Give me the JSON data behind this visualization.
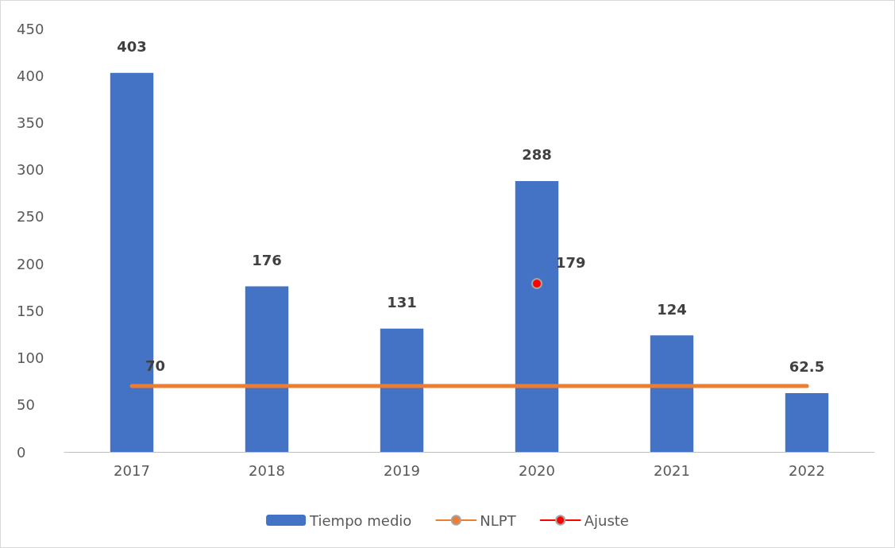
{
  "chart_data": {
    "type": "bar",
    "categories": [
      "2017",
      "2018",
      "2019",
      "2020",
      "2021",
      "2022"
    ],
    "series": [
      {
        "name": "Tiempo medio",
        "color": "#4472c4",
        "values": [
          403,
          176,
          131,
          288,
          124,
          62.5
        ],
        "value_labels": [
          "403",
          "176",
          "131",
          "288",
          "124",
          "62.5"
        ]
      },
      {
        "name": "NLPT",
        "type": "line",
        "color": "#ed7d31",
        "marker": "none",
        "line_style": "solid",
        "values": [
          70,
          70,
          70,
          70,
          70,
          70
        ],
        "value_labels": [
          "70",
          null,
          null,
          null,
          null,
          null
        ]
      },
      {
        "name": "Ajuste",
        "type": "line",
        "color": "#ff0000",
        "marker": "circle",
        "line_style": "solid",
        "values": [
          null,
          null,
          null,
          179,
          null,
          null
        ],
        "value_labels": [
          null,
          null,
          null,
          "179",
          null,
          null
        ]
      }
    ],
    "ylim": [
      0,
      450
    ],
    "yticks": [
      0,
      50,
      100,
      150,
      200,
      250,
      300,
      350,
      400,
      450
    ],
    "grid": false,
    "legend": "bottom"
  }
}
